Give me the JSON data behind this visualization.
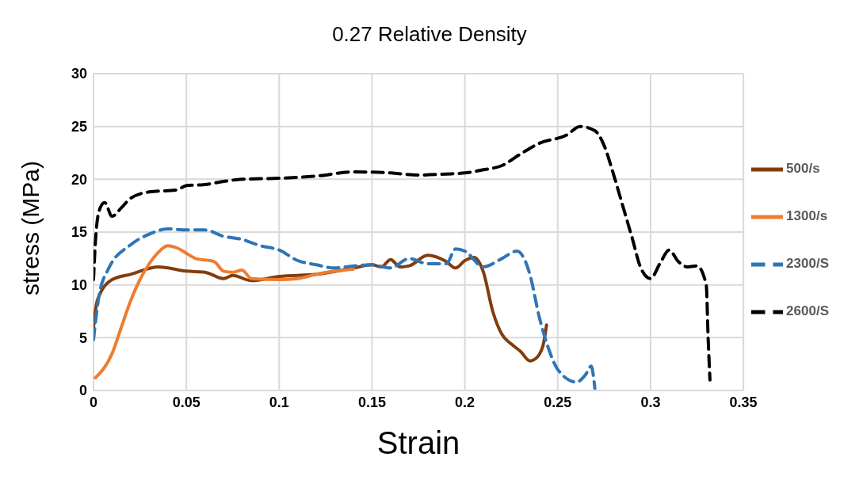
{
  "chart_data": {
    "type": "line",
    "title": "0.27 Relative Density",
    "xlabel": "Strain",
    "ylabel": "stress (MPa)",
    "xlim": [
      0,
      0.35
    ],
    "xticks": [
      0,
      0.05,
      0.1,
      0.15,
      0.2,
      0.25,
      0.3,
      0.35
    ],
    "ylim": [
      0,
      30
    ],
    "yticks": [
      0,
      5,
      10,
      15,
      20,
      25,
      30
    ],
    "grid": true,
    "legend": "right",
    "marker": "none",
    "series": [
      {
        "name": "500/s",
        "color": "#843c0c",
        "line_style": "solid",
        "x": [
          0,
          0.002,
          0.01,
          0.02,
          0.035,
          0.05,
          0.06,
          0.07,
          0.075,
          0.085,
          0.1,
          0.12,
          0.14,
          0.15,
          0.155,
          0.16,
          0.165,
          0.17,
          0.18,
          0.19,
          0.195,
          0.2,
          0.205,
          0.21,
          0.215,
          0.22,
          0.225,
          0.23,
          0.235,
          0.238,
          0.242,
          0.244
        ],
        "values": [
          6,
          8.5,
          10.5,
          11,
          11.7,
          11.3,
          11.2,
          10.6,
          10.9,
          10.4,
          10.8,
          11,
          11.6,
          11.9,
          11.7,
          12.4,
          11.7,
          11.8,
          12.8,
          12.2,
          11.6,
          12.3,
          12.6,
          11.2,
          7.5,
          5.3,
          4.4,
          3.7,
          2.8,
          3,
          4.2,
          6.2
        ]
      },
      {
        "name": "1300/s",
        "color": "#ed7d31",
        "line_style": "solid",
        "x": [
          0.001,
          0.01,
          0.015,
          0.02,
          0.025,
          0.03,
          0.035,
          0.04,
          0.045,
          0.05,
          0.055,
          0.065,
          0.07,
          0.075,
          0.08,
          0.085,
          0.1,
          0.11,
          0.12,
          0.13,
          0.14
        ],
        "values": [
          1.2,
          3.5,
          6,
          8.5,
          10.5,
          12,
          13.1,
          13.7,
          13.5,
          13,
          12.5,
          12.2,
          11.3,
          11.2,
          11.4,
          10.6,
          10.5,
          10.6,
          11,
          11.3,
          11.5
        ]
      },
      {
        "name": "2300/S",
        "color": "#2e75b6",
        "line_style": "dashed",
        "x": [
          0,
          0.003,
          0.008,
          0.02,
          0.03,
          0.04,
          0.05,
          0.06,
          0.07,
          0.08,
          0.09,
          0.1,
          0.11,
          0.12,
          0.13,
          0.14,
          0.15,
          0.16,
          0.17,
          0.18,
          0.19,
          0.195,
          0.2,
          0.21,
          0.22,
          0.228,
          0.235,
          0.24,
          0.245,
          0.25,
          0.26,
          0.265,
          0.268,
          0.27
        ],
        "values": [
          4.8,
          9,
          11.5,
          13.8,
          14.8,
          15.3,
          15.2,
          15.2,
          14.6,
          14.3,
          13.7,
          13.3,
          12.3,
          11.9,
          11.6,
          11.8,
          11.9,
          11.6,
          12.5,
          12,
          12,
          13.4,
          13.2,
          11.7,
          12.5,
          13.2,
          11,
          7,
          4,
          2,
          0.8,
          1.5,
          2.3,
          0.2
        ]
      },
      {
        "name": "2600/S",
        "color": "#000000",
        "line_style": "dashed",
        "x": [
          0,
          0.001,
          0.003,
          0.006,
          0.01,
          0.015,
          0.02,
          0.03,
          0.045,
          0.05,
          0.06,
          0.07,
          0.08,
          0.1,
          0.12,
          0.14,
          0.16,
          0.175,
          0.19,
          0.2,
          0.21,
          0.22,
          0.23,
          0.24,
          0.255,
          0.262,
          0.27,
          0.275,
          0.28,
          0.285,
          0.29,
          0.295,
          0.3,
          0.305,
          0.31,
          0.315,
          0.32,
          0.325,
          0.33,
          0.331,
          0.332
        ],
        "values": [
          10.5,
          14,
          17,
          17.8,
          16.5,
          17.3,
          18.2,
          18.8,
          19,
          19.4,
          19.5,
          19.8,
          20,
          20.1,
          20.3,
          20.7,
          20.6,
          20.4,
          20.5,
          20.6,
          20.9,
          21.3,
          22.4,
          23.4,
          24.2,
          25,
          24.6,
          23.2,
          20.5,
          17.5,
          14.5,
          11.5,
          10.6,
          12,
          13.3,
          12.2,
          11.7,
          11.8,
          10,
          5,
          1
        ]
      }
    ]
  }
}
